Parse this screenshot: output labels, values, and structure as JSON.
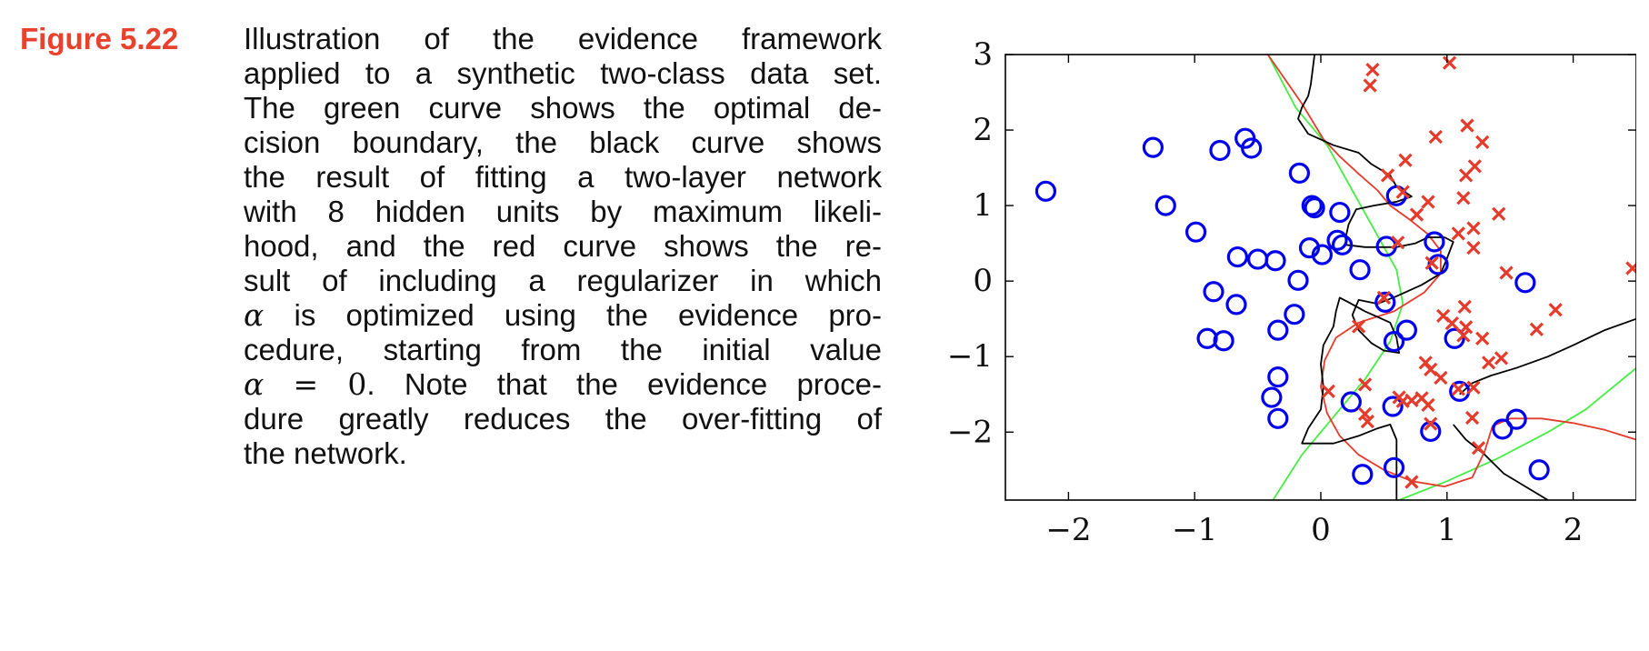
{
  "figure": {
    "label": "Figure 5.22",
    "caption_lines": [
      "Illustration of the evidence framework",
      "applied to a synthetic two-class data set.",
      "The green curve shows the optimal de-",
      "cision boundary, the black curve shows",
      "the result of fitting a two-layer network",
      "with 8 hidden units by maximum likeli-",
      "hood, and the red curve shows the re-",
      "sult of including a regularizer in which",
      "is optimized using the evidence pro-",
      "cedure, starting from the initial value",
      ".  Note that the evidence proce-",
      "dure greatly reduces the over-fitting of",
      "the network."
    ],
    "alpha_symbol": "α",
    "alpha_eq_lhs": "α",
    "alpha_eq_op": "=",
    "alpha_eq_rhs": "0"
  },
  "colors": {
    "class1_circle": "#0000ee",
    "class2_cross": "#e53b2c",
    "green_curve": "#44ee44",
    "red_curve": "#e53b2c",
    "black_curve": "#000000",
    "figure_label": "#e8412e"
  },
  "chart_data": {
    "type": "scatter",
    "xlim": [
      -2.5,
      2.5
    ],
    "ylim": [
      -2.9,
      3.0
    ],
    "xticks": [
      -2,
      -1,
      0,
      1,
      2
    ],
    "yticks": [
      -2,
      -1,
      0,
      1,
      2,
      3
    ],
    "xtick_labels": [
      "−2",
      "−1",
      "0",
      "1",
      "2"
    ],
    "ytick_labels": [
      "−2",
      "−1",
      "0",
      "1",
      "2",
      "3"
    ],
    "series": [
      {
        "marker": "circle",
        "points": [
          [
            -2.18,
            1.19
          ],
          [
            -1.33,
            1.77
          ],
          [
            -1.23,
            1.0
          ],
          [
            -0.99,
            0.65
          ],
          [
            -0.8,
            1.73
          ],
          [
            -0.6,
            1.89
          ],
          [
            -0.55,
            1.76
          ],
          [
            -0.66,
            0.32
          ],
          [
            -0.5,
            0.29
          ],
          [
            -0.36,
            0.27
          ],
          [
            -0.85,
            -0.14
          ],
          [
            -0.67,
            -0.31
          ],
          [
            -0.9,
            -0.76
          ],
          [
            -0.77,
            -0.79
          ],
          [
            -0.17,
            1.43
          ],
          [
            -0.07,
            1.0
          ],
          [
            -0.05,
            0.97
          ],
          [
            0.15,
            0.91
          ],
          [
            -0.09,
            0.44
          ],
          [
            0.01,
            0.35
          ],
          [
            0.13,
            0.54
          ],
          [
            0.17,
            0.48
          ],
          [
            0.31,
            0.15
          ],
          [
            0.52,
            0.46
          ],
          [
            0.9,
            0.52
          ],
          [
            0.93,
            0.22
          ],
          [
            0.6,
            1.13
          ],
          [
            -0.18,
            0.01
          ],
          [
            -0.21,
            -0.44
          ],
          [
            -0.34,
            -0.65
          ],
          [
            -0.34,
            -1.27
          ],
          [
            -0.39,
            -1.54
          ],
          [
            -0.34,
            -1.82
          ],
          [
            0.24,
            -1.6
          ],
          [
            0.33,
            -2.56
          ],
          [
            0.51,
            -0.28
          ],
          [
            0.58,
            -0.8
          ],
          [
            0.68,
            -0.65
          ],
          [
            0.57,
            -1.66
          ],
          [
            0.58,
            -2.47
          ],
          [
            0.87,
            -1.99
          ],
          [
            1.06,
            -0.76
          ],
          [
            1.1,
            -1.46
          ],
          [
            1.44,
            -1.96
          ],
          [
            1.55,
            -1.83
          ],
          [
            1.73,
            -2.5
          ],
          [
            1.62,
            -0.02
          ]
        ]
      },
      {
        "marker": "cross",
        "points": [
          [
            0.39,
            2.59
          ],
          [
            0.41,
            2.8
          ],
          [
            1.02,
            2.89
          ],
          [
            0.67,
            1.6
          ],
          [
            0.91,
            1.91
          ],
          [
            1.16,
            2.06
          ],
          [
            1.28,
            1.84
          ],
          [
            0.53,
            1.4
          ],
          [
            0.65,
            1.18
          ],
          [
            1.15,
            1.4
          ],
          [
            1.22,
            1.52
          ],
          [
            1.13,
            1.1
          ],
          [
            0.76,
            0.88
          ],
          [
            0.85,
            1.05
          ],
          [
            1.41,
            0.89
          ],
          [
            1.09,
            0.63
          ],
          [
            1.21,
            0.7
          ],
          [
            1.21,
            0.44
          ],
          [
            1.47,
            0.11
          ],
          [
            2.47,
            0.17
          ],
          [
            0.61,
            0.51
          ],
          [
            0.88,
            0.24
          ],
          [
            0.5,
            -0.22
          ],
          [
            0.3,
            -0.6
          ],
          [
            0.97,
            -0.46
          ],
          [
            1.04,
            -0.56
          ],
          [
            1.14,
            -0.34
          ],
          [
            1.15,
            -0.61
          ],
          [
            1.13,
            -0.72
          ],
          [
            1.28,
            -0.76
          ],
          [
            1.33,
            -1.08
          ],
          [
            1.43,
            -1.02
          ],
          [
            1.71,
            -0.64
          ],
          [
            1.86,
            -0.38
          ],
          [
            0.83,
            -1.08
          ],
          [
            0.87,
            -1.17
          ],
          [
            0.95,
            -1.28
          ],
          [
            0.72,
            -1.58
          ],
          [
            0.8,
            -1.55
          ],
          [
            0.85,
            -1.64
          ],
          [
            0.65,
            -1.59
          ],
          [
            0.62,
            -1.54
          ],
          [
            0.35,
            -1.37
          ],
          [
            0.35,
            -1.76
          ],
          [
            0.37,
            -1.86
          ],
          [
            0.06,
            -1.46
          ],
          [
            0.87,
            -1.89
          ],
          [
            1.09,
            -1.43
          ],
          [
            1.21,
            -1.41
          ],
          [
            1.2,
            -1.81
          ],
          [
            1.25,
            -2.21
          ],
          [
            0.72,
            -2.66
          ]
        ]
      }
    ],
    "curves": [
      {
        "color": "green",
        "points": [
          [
            -0.45,
            3.1
          ],
          [
            -0.2,
            2.3
          ],
          [
            0.05,
            1.8
          ],
          [
            0.25,
            1.2
          ],
          [
            0.45,
            0.6
          ],
          [
            0.6,
            0.15
          ],
          [
            0.65,
            -0.3
          ],
          [
            0.55,
            -0.8
          ],
          [
            0.35,
            -1.3
          ],
          [
            0.1,
            -1.8
          ],
          [
            -0.15,
            -2.3
          ],
          [
            -0.38,
            -2.9
          ]
        ]
      },
      {
        "color": "green",
        "points": [
          [
            0.62,
            -2.9
          ],
          [
            1.0,
            -2.65
          ],
          [
            1.4,
            -2.35
          ],
          [
            1.8,
            -2.0
          ],
          [
            2.1,
            -1.7
          ],
          [
            2.5,
            -1.15
          ]
        ]
      },
      {
        "color": "red",
        "points": [
          [
            -0.42,
            3.0
          ],
          [
            -0.15,
            2.35
          ],
          [
            0.02,
            1.88
          ],
          [
            0.15,
            1.65
          ],
          [
            0.3,
            1.42
          ],
          [
            0.45,
            1.2
          ],
          [
            0.55,
            1.0
          ],
          [
            0.7,
            0.82
          ],
          [
            0.85,
            0.62
          ],
          [
            0.95,
            0.4
          ],
          [
            0.95,
            0.1
          ],
          [
            0.82,
            -0.15
          ],
          [
            0.58,
            -0.4
          ],
          [
            0.3,
            -0.55
          ],
          [
            0.12,
            -0.75
          ],
          [
            0.03,
            -1.05
          ],
          [
            0.0,
            -1.4
          ],
          [
            0.05,
            -1.75
          ],
          [
            0.15,
            -2.05
          ],
          [
            0.3,
            -2.3
          ],
          [
            0.5,
            -2.5
          ],
          [
            0.72,
            -2.65
          ],
          [
            0.98,
            -2.72
          ],
          [
            1.2,
            -2.6
          ],
          [
            1.3,
            -2.25
          ],
          [
            1.36,
            -1.92
          ],
          [
            1.5,
            -1.82
          ],
          [
            1.75,
            -1.82
          ],
          [
            2.0,
            -1.88
          ],
          [
            2.25,
            -1.97
          ],
          [
            2.5,
            -2.1
          ]
        ]
      },
      {
        "color": "black",
        "points": [
          [
            -0.05,
            3.0
          ],
          [
            -0.08,
            2.6
          ],
          [
            -0.1,
            2.45
          ],
          [
            -0.15,
            2.3
          ],
          [
            -0.18,
            2.15
          ],
          [
            -0.1,
            1.95
          ],
          [
            0.1,
            1.8
          ],
          [
            0.3,
            1.7
          ],
          [
            0.4,
            1.55
          ],
          [
            0.55,
            1.4
          ],
          [
            0.6,
            1.25
          ],
          [
            0.72,
            1.12
          ],
          [
            0.6,
            1.05
          ],
          [
            0.42,
            1.0
          ],
          [
            0.28,
            0.95
          ],
          [
            0.22,
            0.75
          ],
          [
            0.2,
            0.6
          ],
          [
            0.2,
            0.48
          ],
          [
            0.35,
            0.45
          ],
          [
            0.6,
            0.45
          ],
          [
            0.75,
            0.5
          ],
          [
            0.85,
            0.58
          ],
          [
            0.98,
            0.58
          ],
          [
            1.05,
            0.52
          ],
          [
            1.0,
            0.3
          ],
          [
            0.95,
            0.1
          ],
          [
            0.8,
            -0.05
          ],
          [
            0.6,
            -0.2
          ],
          [
            0.45,
            -0.3
          ],
          [
            0.3,
            -0.25
          ],
          [
            0.25,
            -0.45
          ],
          [
            0.3,
            -0.65
          ],
          [
            0.4,
            -0.82
          ],
          [
            0.5,
            -0.92
          ],
          [
            0.62,
            -0.95
          ],
          [
            0.6,
            -0.75
          ],
          [
            0.55,
            -0.55
          ],
          [
            0.35,
            -0.4
          ],
          [
            0.22,
            -0.28
          ],
          [
            0.15,
            -0.22
          ],
          [
            0.12,
            -0.4
          ],
          [
            0.1,
            -0.6
          ],
          [
            0.02,
            -0.85
          ],
          [
            0.0,
            -1.1
          ],
          [
            0.02,
            -1.4
          ],
          [
            0.0,
            -1.7
          ],
          [
            -0.1,
            -1.95
          ],
          [
            -0.15,
            -2.15
          ],
          [
            0.1,
            -2.15
          ],
          [
            0.3,
            -2.05
          ],
          [
            0.45,
            -1.95
          ],
          [
            0.55,
            -1.9
          ],
          [
            0.6,
            -2.1
          ],
          [
            0.6,
            -2.4
          ],
          [
            0.6,
            -2.9
          ]
        ]
      },
      {
        "color": "black",
        "points": [
          [
            1.1,
            -1.5
          ],
          [
            1.2,
            -1.35
          ],
          [
            1.35,
            -1.25
          ],
          [
            1.55,
            -1.15
          ],
          [
            1.8,
            -1.0
          ],
          [
            2.0,
            -0.85
          ],
          [
            2.25,
            -0.65
          ],
          [
            2.5,
            -0.5
          ]
        ]
      },
      {
        "color": "black",
        "points": [
          [
            1.05,
            -1.9
          ],
          [
            1.15,
            -2.1
          ],
          [
            1.3,
            -2.3
          ],
          [
            1.45,
            -2.55
          ],
          [
            1.65,
            -2.75
          ],
          [
            1.8,
            -2.9
          ]
        ]
      }
    ]
  }
}
